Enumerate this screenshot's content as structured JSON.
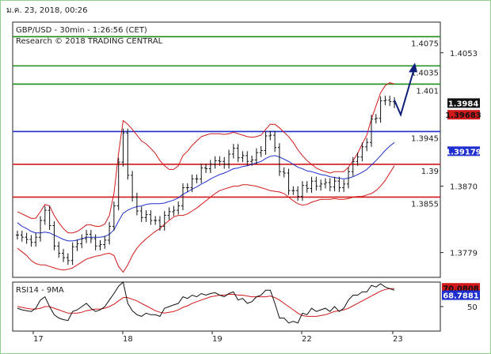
{
  "header": {
    "stamp": "ม.ค. 23, 2018, 00:26",
    "title": "GBP/USD - 30min - 1:26:56 (CET)",
    "copyright": "Research © 2018 TRADING CENTRAL"
  },
  "chart_data": {
    "type": "line",
    "main_panel": {
      "ylim": [
        1.3745,
        1.4095
      ],
      "y_ticks": [
        "1.4053",
        "1.3870",
        "1.3779"
      ],
      "x_ticks": [
        "17",
        "18",
        "19",
        "22",
        "23"
      ],
      "levels": [
        {
          "label": "1.4075",
          "value": 1.4075,
          "color": "#1a8c1a",
          "label_color": "#1a8c1a"
        },
        {
          "label": "1.4035",
          "value": 1.4035,
          "color": "#1a8c1a",
          "label_color": "#1a8c1a"
        },
        {
          "label": "1.401",
          "value": 1.401,
          "color": "#1a8c1a",
          "label_color": "#1a8c1a"
        },
        {
          "label": "1.3945",
          "value": 1.3945,
          "color": "#1f2fcf",
          "label_color": "#1f2fcf"
        },
        {
          "label": "1.39",
          "value": 1.39,
          "color": "#d11919",
          "label_color": "#d11919"
        },
        {
          "label": "1.3855",
          "value": 1.3855,
          "color": "#d11919",
          "label_color": "#d11919"
        }
      ],
      "price_boxes": [
        {
          "label": "1.3984",
          "value": 1.3984,
          "bg": "#111111",
          "fg": "#ffffff"
        },
        {
          "label": "1.39683",
          "value": 1.3968,
          "bg": "#d11919",
          "fg": "#111111"
        },
        {
          "label": "1.39179",
          "value": 1.3918,
          "bg": "#1f2fcf",
          "fg": "#ffffff"
        }
      ],
      "close_series": [
        1.3803,
        1.38,
        1.3797,
        1.3793,
        1.38,
        1.3823,
        1.3837,
        1.3816,
        1.3788,
        1.3778,
        1.3772,
        1.3768,
        1.3787,
        1.3791,
        1.3798,
        1.3804,
        1.3798,
        1.3788,
        1.379,
        1.3796,
        1.3815,
        1.3843,
        1.3903,
        1.3943,
        1.3885,
        1.3855,
        1.3836,
        1.3827,
        1.3831,
        1.3823,
        1.3823,
        1.3815,
        1.383,
        1.3835,
        1.3837,
        1.3843,
        1.3868,
        1.3868,
        1.388,
        1.388,
        1.3895,
        1.3894,
        1.39,
        1.3905,
        1.3904,
        1.39,
        1.3914,
        1.3922,
        1.3909,
        1.3912,
        1.3904,
        1.3906,
        1.3916,
        1.3919,
        1.3939,
        1.394,
        1.3923,
        1.389,
        1.3888,
        1.3864,
        1.3864,
        1.3856,
        1.3871,
        1.3867,
        1.3877,
        1.387,
        1.3873,
        1.3875,
        1.3869,
        1.3877,
        1.3868,
        1.3873,
        1.389,
        1.3904,
        1.391,
        1.3924,
        1.393,
        1.3962,
        1.3963,
        1.3987,
        1.3988,
        1.3986,
        1.3983
      ],
      "ma_fast": [
        1.382,
        1.3815,
        1.3812,
        1.3808,
        1.3806,
        1.3806,
        1.3807,
        1.3806,
        1.3803,
        1.38,
        1.3797,
        1.3795,
        1.3795,
        1.3796,
        1.3798,
        1.38,
        1.38,
        1.38,
        1.38,
        1.3801,
        1.3804,
        1.381,
        1.3822,
        1.3833,
        1.3837,
        1.384,
        1.3842,
        1.3843,
        1.3845,
        1.3846,
        1.3846,
        1.3846,
        1.3847,
        1.3849,
        1.3851,
        1.3854,
        1.3859,
        1.3862,
        1.3866,
        1.3869,
        1.3873,
        1.3876,
        1.388,
        1.3883,
        1.3886,
        1.3888,
        1.3891,
        1.3894,
        1.3895,
        1.3897,
        1.3898,
        1.39,
        1.3902,
        1.3904,
        1.3908,
        1.3911,
        1.3912,
        1.391,
        1.3907,
        1.3904,
        1.39,
        1.3896,
        1.3894,
        1.3891,
        1.389,
        1.3888,
        1.3886,
        1.3885,
        1.3883,
        1.3882,
        1.3881,
        1.388,
        1.3881,
        1.3883,
        1.3886,
        1.3889,
        1.3893,
        1.3899,
        1.3905,
        1.3912,
        1.3919,
        1.3925,
        1.393
      ],
      "bb_upper": [
        1.3835,
        1.3832,
        1.3829,
        1.3826,
        1.3826,
        1.3835,
        1.3845,
        1.3843,
        1.383,
        1.382,
        1.3812,
        1.3806,
        1.3806,
        1.3808,
        1.3812,
        1.3817,
        1.3817,
        1.3815,
        1.3815,
        1.3818,
        1.383,
        1.386,
        1.3915,
        1.396,
        1.3955,
        1.3948,
        1.394,
        1.3932,
        1.3928,
        1.3922,
        1.3915,
        1.3905,
        1.3898,
        1.3893,
        1.3893,
        1.3898,
        1.3912,
        1.3918,
        1.3926,
        1.3932,
        1.3938,
        1.394,
        1.3942,
        1.3942,
        1.3942,
        1.3941,
        1.3942,
        1.3944,
        1.3942,
        1.394,
        1.3938,
        1.3937,
        1.3938,
        1.394,
        1.3948,
        1.3955,
        1.3955,
        1.395,
        1.3944,
        1.3938,
        1.393,
        1.392,
        1.3912,
        1.3905,
        1.39,
        1.3895,
        1.3892,
        1.389,
        1.3888,
        1.389,
        1.389,
        1.389,
        1.3896,
        1.3905,
        1.3915,
        1.3928,
        1.394,
        1.3962,
        1.398,
        1.3998,
        1.4008,
        1.4012,
        1.401
      ],
      "bb_lower": [
        1.3785,
        1.378,
        1.3775,
        1.3768,
        1.3764,
        1.3762,
        1.3762,
        1.376,
        1.3758,
        1.3756,
        1.3755,
        1.3756,
        1.3758,
        1.3762,
        1.3766,
        1.377,
        1.3772,
        1.3774,
        1.3775,
        1.3777,
        1.3778,
        1.3775,
        1.376,
        1.3752,
        1.3762,
        1.3775,
        1.3785,
        1.3792,
        1.3798,
        1.3803,
        1.3808,
        1.3812,
        1.3818,
        1.3823,
        1.3828,
        1.383,
        1.383,
        1.3832,
        1.3836,
        1.384,
        1.3845,
        1.385,
        1.3855,
        1.386,
        1.3864,
        1.3866,
        1.3868,
        1.387,
        1.387,
        1.3872,
        1.3872,
        1.3871,
        1.387,
        1.3868,
        1.3866,
        1.3864,
        1.3863,
        1.3862,
        1.386,
        1.3855,
        1.385,
        1.3846,
        1.3844,
        1.3845,
        1.3848,
        1.385,
        1.3852,
        1.3852,
        1.3852,
        1.3853,
        1.3852,
        1.3852,
        1.3853,
        1.3855,
        1.3856,
        1.3856,
        1.3858,
        1.386,
        1.3864,
        1.387,
        1.3878,
        1.3888,
        1.3898
      ],
      "forecast_arrow": [
        1.3988,
        1.3968,
        1.4035
      ]
    },
    "rsi_panel": {
      "title": "RSI14 - 9MA",
      "ylim": [
        20,
        80
      ],
      "y_ticks": [
        "50"
      ],
      "price_boxes": [
        {
          "label": "70.0808",
          "value": 70.08,
          "bg": "#d11919",
          "fg": "#111111"
        },
        {
          "label": "68.7881",
          "value": 68.79,
          "bg": "#1f2fcf",
          "fg": "#ffffff"
        }
      ],
      "rsi": [
        48,
        46,
        45,
        44,
        48,
        58,
        62,
        50,
        40,
        36,
        34,
        33,
        44,
        46,
        50,
        54,
        48,
        44,
        46,
        50,
        58,
        66,
        75,
        80,
        54,
        45,
        40,
        38,
        42,
        40,
        40,
        38,
        48,
        50,
        52,
        54,
        62,
        60,
        64,
        62,
        66,
        64,
        66,
        67,
        64,
        62,
        66,
        68,
        58,
        60,
        54,
        56,
        62,
        64,
        70,
        70,
        54,
        36,
        36,
        30,
        32,
        30,
        42,
        40,
        48,
        44,
        46,
        48,
        44,
        50,
        44,
        48,
        58,
        64,
        64,
        68,
        68,
        76,
        74,
        78,
        74,
        72,
        70
      ],
      "ma9": [
        50,
        49,
        48,
        47,
        47,
        48,
        50,
        50,
        48,
        46,
        44,
        42,
        42,
        42,
        43,
        45,
        46,
        47,
        47,
        48,
        50,
        53,
        57,
        61,
        61,
        59,
        57,
        54,
        51,
        48,
        45,
        43,
        42,
        43,
        44,
        46,
        49,
        51,
        54,
        56,
        58,
        60,
        62,
        63,
        64,
        64,
        65,
        65,
        64,
        64,
        63,
        62,
        62,
        62,
        62,
        63,
        61,
        58,
        54,
        50,
        46,
        42,
        39,
        38,
        38,
        38,
        39,
        40,
        42,
        44,
        45,
        46,
        48,
        51,
        54,
        57,
        60,
        63,
        66,
        69,
        71,
        72,
        72
      ]
    }
  }
}
